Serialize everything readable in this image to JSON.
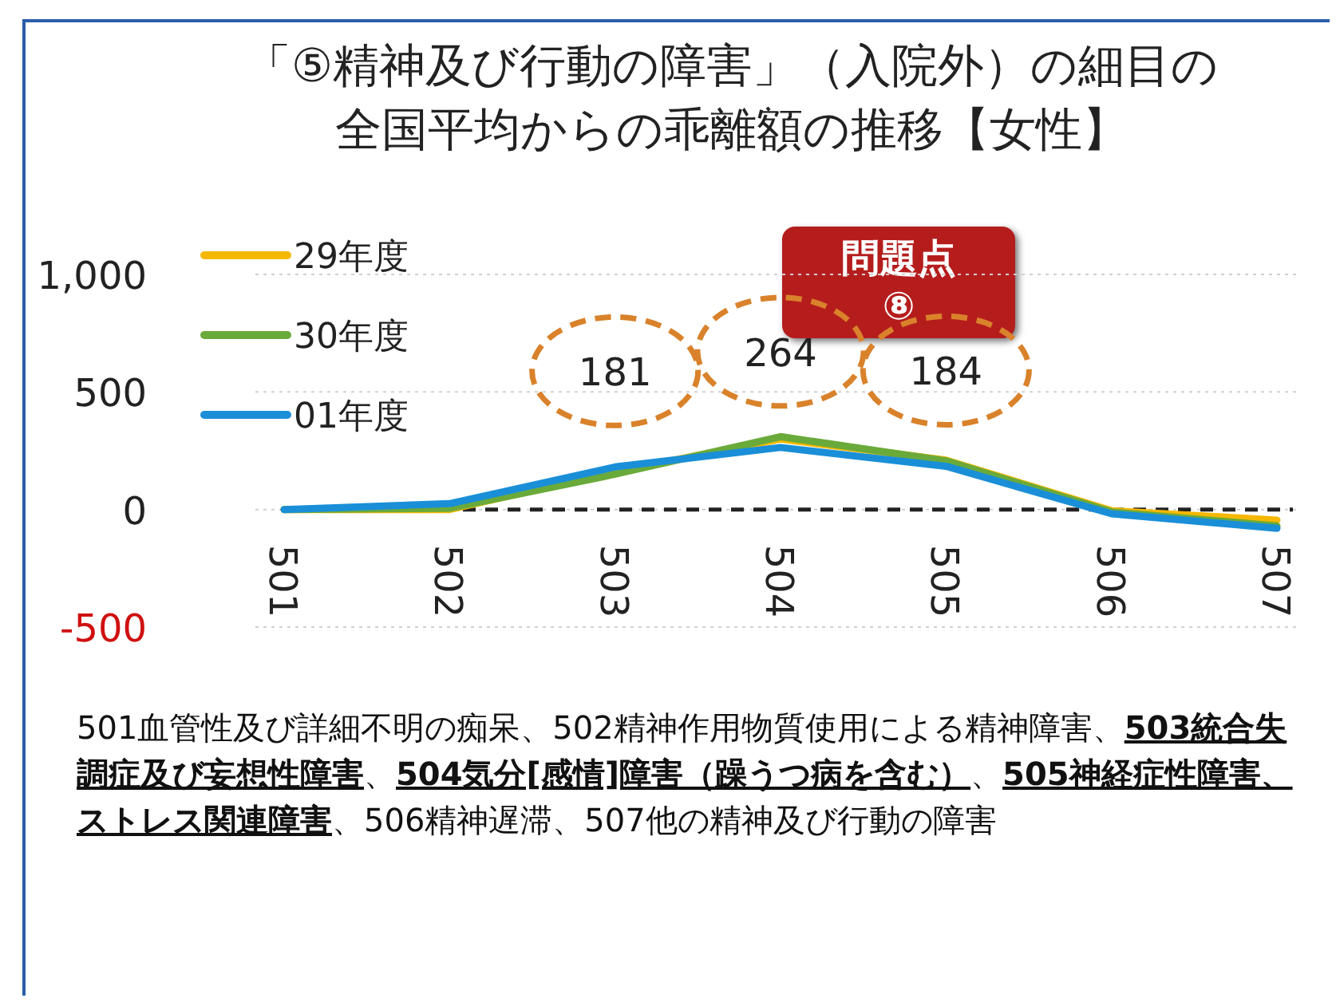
{
  "chart_data": {
    "type": "line",
    "title": "「⑤精神及び行動の障害」（入院外）の細目の",
    "subtitle": "全国平均からの乖離額の推移【女性】",
    "categories": [
      "501",
      "502",
      "503",
      "504",
      "505",
      "506",
      "507"
    ],
    "series": [
      {
        "name": "29年度",
        "color": "#f5b800",
        "values": [
          0,
          0,
          160,
          300,
          210,
          -5,
          -45
        ]
      },
      {
        "name": "30年度",
        "color": "#6aaa3a",
        "values": [
          0,
          5,
          150,
          310,
          207,
          -10,
          -70
        ]
      },
      {
        "name": "01年度",
        "color": "#1a8fd8",
        "values": [
          0,
          25,
          181,
          264,
          184,
          -18,
          -80
        ],
        "value_labels": [
          null,
          null,
          "181",
          "264",
          "184",
          null,
          null
        ]
      }
    ],
    "ylim": [
      -500,
      1000
    ],
    "yticks": [
      {
        "value": 1000,
        "label": "1,000"
      },
      500,
      0,
      -500
    ],
    "grid": "y",
    "legend": "top left",
    "marker": "none",
    "line_style": "solid",
    "ref_lines": [
      {
        "axis": "y",
        "value": 0,
        "color": "#222222",
        "line_style": "dashed"
      }
    ],
    "annotations": [
      "問題点 ⑧",
      "501血管性及び詳細不明の痴呆、502精神作用物質使用による精神障害、**503統合失調症及び妄想性障害**、**504気分[感情]障害（躁うつ病を含む）**、**505神経症性障害、ストレス関連障害**、506精神遅滞、507他の精神及び行動の障害"
    ]
  }
}
